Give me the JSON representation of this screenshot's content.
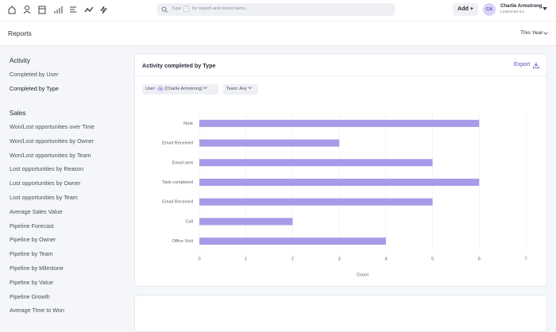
{
  "topbar": {
    "search": {
      "prefix": "Type",
      "key": "/",
      "placeholder": "for search and recent items..."
    },
    "add_button": "Add +",
    "user": {
      "initials": "CA",
      "name": "Charlie Armstrong",
      "company": "Looksmart Inc"
    }
  },
  "header": {
    "title": "Reports",
    "period": "This Year"
  },
  "sidebar": {
    "sections": [
      {
        "title": "Activity",
        "items": [
          "Completed by User",
          "Completed by Type"
        ]
      },
      {
        "title": "Sales",
        "items": [
          "Won/Lost opportunities over Time",
          "Won/Lost opportunities by Owner",
          "Won/Lost opportunities by Team",
          "Lost opportunities by Reason",
          "Lost opportunities by Owner",
          "Lost opportunities by Team",
          "Average Sales Value",
          "Pipeline Forecast",
          "Pipeline by Owner",
          "Pipeline by Team",
          "Pipeline by Milestone",
          "Pipeline by Value",
          "Pipeline Growth",
          "Average Time to Won"
        ]
      }
    ]
  },
  "panel": {
    "title": "Activity completed by Type",
    "export": "Export",
    "filters": [
      {
        "label": "User:",
        "avatar": "CA",
        "value": "(Charlie Armstrong)"
      },
      {
        "label": "Team:",
        "value": "Any"
      }
    ]
  },
  "chart_data": {
    "type": "bar",
    "orientation": "horizontal",
    "categories": [
      "Note",
      "Email Received",
      "Email sent",
      "Task completed",
      "Email Received",
      "Call",
      "Office Visit"
    ],
    "values": [
      6,
      3,
      5,
      6,
      5,
      2,
      4
    ],
    "color": "#a89ae8",
    "xlabel": "Count",
    "xlim": [
      0,
      7
    ],
    "xticks": [
      0,
      1,
      2,
      3,
      4,
      5,
      6,
      7
    ],
    "grid": true
  }
}
